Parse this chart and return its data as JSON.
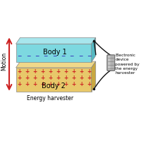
{
  "bg_color": "#ffffff",
  "body1_color": "#7dd8e0",
  "body1_top_color": "#a8e6ed",
  "body1_dark": "#55b8c2",
  "body2_color": "#e8c86a",
  "body2_top_color": "#f0d88a",
  "body2_dark": "#c9a840",
  "minus_color": "#3333bb",
  "plus_color": "#cc2222",
  "arrow_color": "#cc2222",
  "wire_color": "#111111",
  "capacitor_color": "#b0b0b0",
  "capacitor_light": "#d0d0d0",
  "motion_label": "Motion",
  "body1_label": "Body 1",
  "body2_label": "Body 2",
  "harvester_label": "Energy harvester",
  "electronic_label": "Electronic\ndevice\npowered by\nthe energy\nharvester"
}
